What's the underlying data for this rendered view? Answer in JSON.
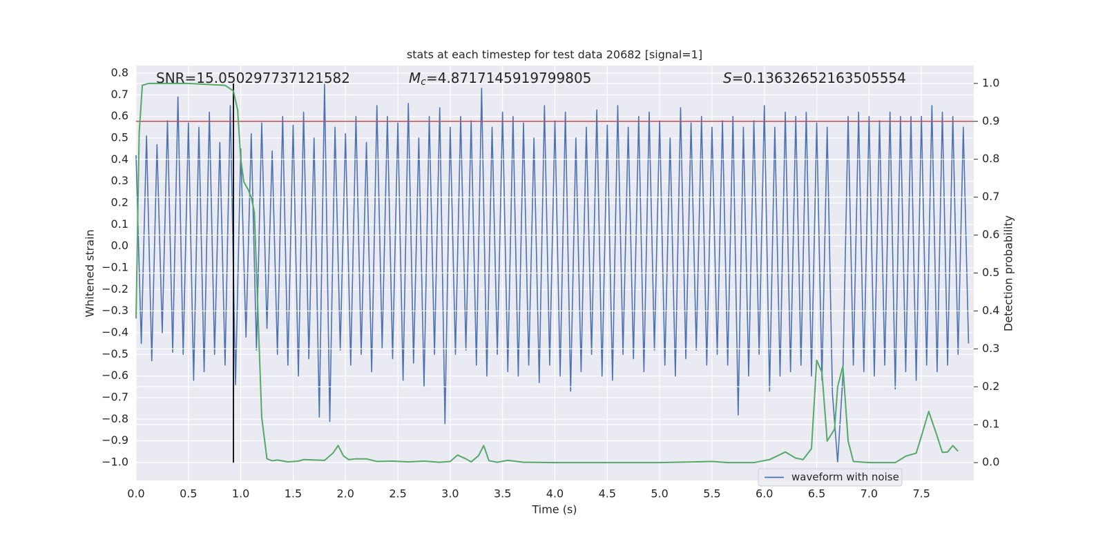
{
  "chart_data": {
    "type": "line",
    "title": "stats at each timestep for test data 20682 [signal=1]",
    "xlabel": "Time (s)",
    "ylabel": "Whitened strain",
    "y2label": "Detection probability",
    "annotations": [
      {
        "parts": [
          "SNR=15.050297737121582"
        ]
      },
      {
        "parts": [
          "M",
          "c",
          "=4.8717145919799805"
        ]
      },
      {
        "parts": [
          "S",
          "=0.13632652163505554"
        ]
      }
    ],
    "xlim": [
      0,
      8.0
    ],
    "ylim": [
      -1.083,
      0.835
    ],
    "y2lim": [
      -0.047,
      1.047
    ],
    "xticks": [
      {
        "value": 0,
        "label": "0.0"
      },
      0.5,
      {
        "value": 1,
        "label": "1.0"
      },
      1.5,
      {
        "value": 2,
        "label": "2.0"
      },
      2.5,
      {
        "value": 3,
        "label": "3.0"
      },
      3.5,
      {
        "value": 4,
        "label": "4.0"
      },
      4.5,
      {
        "value": 5,
        "label": "5.0"
      },
      5.5,
      {
        "value": 6,
        "label": "6.0"
      },
      6.5,
      {
        "value": 7,
        "label": "7.0"
      },
      7.5
    ],
    "yticks": [
      0.8,
      0.7,
      0.6,
      0.5,
      0.4,
      0.3,
      0.2,
      0.1,
      {
        "value": 0,
        "label": "0.0"
      },
      {
        "value": -0.1,
        "label": "−0.1"
      },
      {
        "value": -0.2,
        "label": "−0.2"
      },
      {
        "value": -0.3,
        "label": "−0.3"
      },
      {
        "value": -0.4,
        "label": "−0.4"
      },
      {
        "value": -0.5,
        "label": "−0.5"
      },
      {
        "value": -0.6,
        "label": "−0.6"
      },
      {
        "value": -0.7,
        "label": "−0.7"
      },
      {
        "value": -0.8,
        "label": "−0.8"
      },
      {
        "value": -0.9,
        "label": "−0.9"
      },
      {
        "value": -1.0,
        "label": "−1.0"
      }
    ],
    "y2ticks": [
      {
        "value": 1,
        "label": "1.0"
      },
      0.9,
      0.8,
      0.7,
      0.6,
      0.5,
      0.4,
      0.3,
      0.2,
      0.1,
      {
        "value": 0,
        "label": "0.0"
      }
    ],
    "grid": true,
    "background": "#eaeaf2",
    "legend": "lower right",
    "hlines": [
      {
        "y": 0.9,
        "axis": "y2",
        "color": "#c44e52"
      }
    ],
    "vlines": [
      {
        "x": 0.93,
        "yrange": [
          0,
          1
        ],
        "axis": "y2",
        "color": "#000000"
      }
    ],
    "series": [
      {
        "name": "waveform with noise",
        "color": "#4c72b0",
        "x": [
          0,
          0.05,
          0.1,
          0.15,
          0.2,
          0.25,
          0.3,
          0.35,
          0.4,
          0.45,
          0.5,
          0.55,
          0.6,
          0.65,
          0.7,
          0.75,
          0.8,
          0.85,
          0.9,
          0.95,
          1,
          1.05,
          1.1,
          1.15,
          1.2,
          1.25,
          1.3,
          1.35,
          1.4,
          1.45,
          1.5,
          1.55,
          1.6,
          1.65,
          1.7,
          1.75,
          1.8,
          1.85,
          1.9,
          1.95,
          2,
          2.05,
          2.1,
          2.15,
          2.2,
          2.25,
          2.3,
          2.35,
          2.4,
          2.45,
          2.5,
          2.55,
          2.6,
          2.65,
          2.7,
          2.75,
          2.8,
          2.85,
          2.9,
          2.95,
          3,
          3.05,
          3.1,
          3.15,
          3.2,
          3.25,
          3.3,
          3.35,
          3.4,
          3.45,
          3.5,
          3.55,
          3.6,
          3.65,
          3.7,
          3.75,
          3.8,
          3.85,
          3.9,
          3.95,
          4,
          4.05,
          4.1,
          4.15,
          4.2,
          4.25,
          4.3,
          4.35,
          4.4,
          4.45,
          4.5,
          4.55,
          4.6,
          4.65,
          4.7,
          4.75,
          4.8,
          4.85,
          4.9,
          4.95,
          5,
          5.05,
          5.1,
          5.15,
          5.2,
          5.25,
          5.3,
          5.35,
          5.4,
          5.45,
          5.5,
          5.55,
          5.6,
          5.65,
          5.7,
          5.75,
          5.8,
          5.85,
          5.9,
          5.95,
          6,
          6.05,
          6.1,
          6.15,
          6.2,
          6.25,
          6.3,
          6.35,
          6.4,
          6.45,
          6.5,
          6.55,
          6.6,
          6.65,
          6.7,
          6.75,
          6.8,
          6.85,
          6.9,
          6.95,
          7,
          7.05,
          7.1,
          7.15,
          7.2,
          7.25,
          7.3,
          7.35,
          7.4,
          7.45,
          7.5,
          7.55,
          7.6,
          7.65,
          7.7,
          7.75,
          7.8,
          7.85,
          7.9,
          7.95
        ],
        "values": [
          0.42,
          -0.45,
          0.51,
          -0.53,
          0.47,
          -0.4,
          0.58,
          -0.49,
          0.69,
          -0.5,
          0.57,
          -0.62,
          0.55,
          -0.58,
          0.62,
          -0.5,
          0.48,
          -0.55,
          0.65,
          -0.64,
          0.45,
          -0.42,
          0.52,
          -0.48,
          0.57,
          -0.38,
          0.44,
          -0.5,
          0.6,
          -0.55,
          0.56,
          -0.6,
          0.62,
          -0.52,
          0.5,
          -0.79,
          0.75,
          -0.81,
          0.55,
          -0.48,
          0.52,
          -0.55,
          0.6,
          -0.5,
          0.48,
          -0.58,
          0.65,
          -0.47,
          0.6,
          -0.52,
          0.57,
          -0.62,
          0.66,
          -0.54,
          0.5,
          -0.65,
          0.6,
          -0.5,
          0.64,
          -0.82,
          0.55,
          -0.5,
          0.6,
          -0.48,
          0.58,
          -0.55,
          0.73,
          -0.6,
          0.55,
          -0.5,
          0.62,
          -0.58,
          0.6,
          -0.6,
          0.57,
          -0.55,
          0.5,
          -0.63,
          0.65,
          -0.55,
          0.58,
          -0.6,
          0.62,
          -0.67,
          0.5,
          -0.58,
          0.55,
          -0.5,
          0.63,
          -0.6,
          0.56,
          -0.62,
          0.65,
          -0.5,
          0.55,
          -0.52,
          0.6,
          -0.58,
          0.62,
          -0.48,
          0.58,
          -0.55,
          0.5,
          -0.6,
          0.64,
          -0.52,
          0.57,
          -0.48,
          0.6,
          -0.55,
          0.55,
          -0.5,
          0.58,
          -0.55,
          0.6,
          -0.78,
          0.55,
          -0.6,
          0.58,
          -0.5,
          0.65,
          -0.67,
          0.55,
          -0.6,
          0.62,
          -0.58,
          0.6,
          -0.55,
          0.62,
          -0.6,
          0.57,
          -0.62,
          0.55,
          -0.68,
          -1.0,
          -0.6,
          0.6,
          -0.55,
          0.62,
          -0.58,
          0.6,
          -0.6,
          0.58,
          -0.55,
          0.62,
          -0.66,
          0.6,
          -0.58,
          0.6,
          -0.62,
          0.6,
          -0.55,
          0.65,
          -0.58,
          0.62,
          -0.55,
          0.6,
          -0.5,
          0.55,
          -0.45
        ]
      },
      {
        "color": "#55a868",
        "axis": "y2",
        "x": [
          0,
          0.03,
          0.06,
          0.12,
          0.5,
          0.85,
          0.93,
          0.97,
          1.0,
          1.03,
          1.07,
          1.1,
          1.13,
          1.2,
          1.25,
          1.3,
          1.35,
          1.45,
          1.55,
          1.6,
          1.8,
          1.88,
          1.93,
          1.98,
          2.03,
          2.1,
          2.2,
          2.3,
          2.45,
          2.6,
          2.75,
          2.9,
          3.0,
          3.07,
          3.15,
          3.2,
          3.27,
          3.32,
          3.37,
          3.45,
          3.55,
          3.7,
          4.0,
          4.5,
          5.0,
          5.5,
          5.65,
          5.9,
          6.05,
          6.2,
          6.3,
          6.37,
          6.45,
          6.5,
          6.55,
          6.6,
          6.67,
          6.7,
          6.75,
          6.8,
          6.85,
          7.0,
          7.25,
          7.35,
          7.45,
          7.5,
          7.57,
          7.65,
          7.7,
          7.75,
          7.8,
          7.85
        ],
        "values": [
          0.38,
          0.87,
          0.995,
          1.0,
          1.0,
          0.995,
          0.98,
          0.93,
          0.8,
          0.74,
          0.72,
          0.7,
          0.66,
          0.12,
          0.01,
          0.005,
          0.007,
          0.002,
          0.004,
          0.008,
          0.006,
          0.025,
          0.045,
          0.018,
          0.008,
          0.01,
          0.01,
          0.003,
          0.004,
          0.002,
          0.004,
          0.001,
          0.003,
          0.02,
          0.01,
          0.002,
          0.018,
          0.045,
          0.005,
          0.001,
          0.006,
          0.001,
          0.0,
          0.0,
          0.0,
          0.003,
          0.0,
          0.0,
          0.008,
          0.028,
          0.012,
          0.008,
          0.037,
          0.27,
          0.238,
          0.057,
          0.088,
          0.2,
          0.255,
          0.057,
          0.003,
          0.0,
          0.0,
          0.017,
          0.025,
          0.07,
          0.135,
          0.07,
          0.027,
          0.028,
          0.045,
          0.03
        ]
      }
    ]
  }
}
